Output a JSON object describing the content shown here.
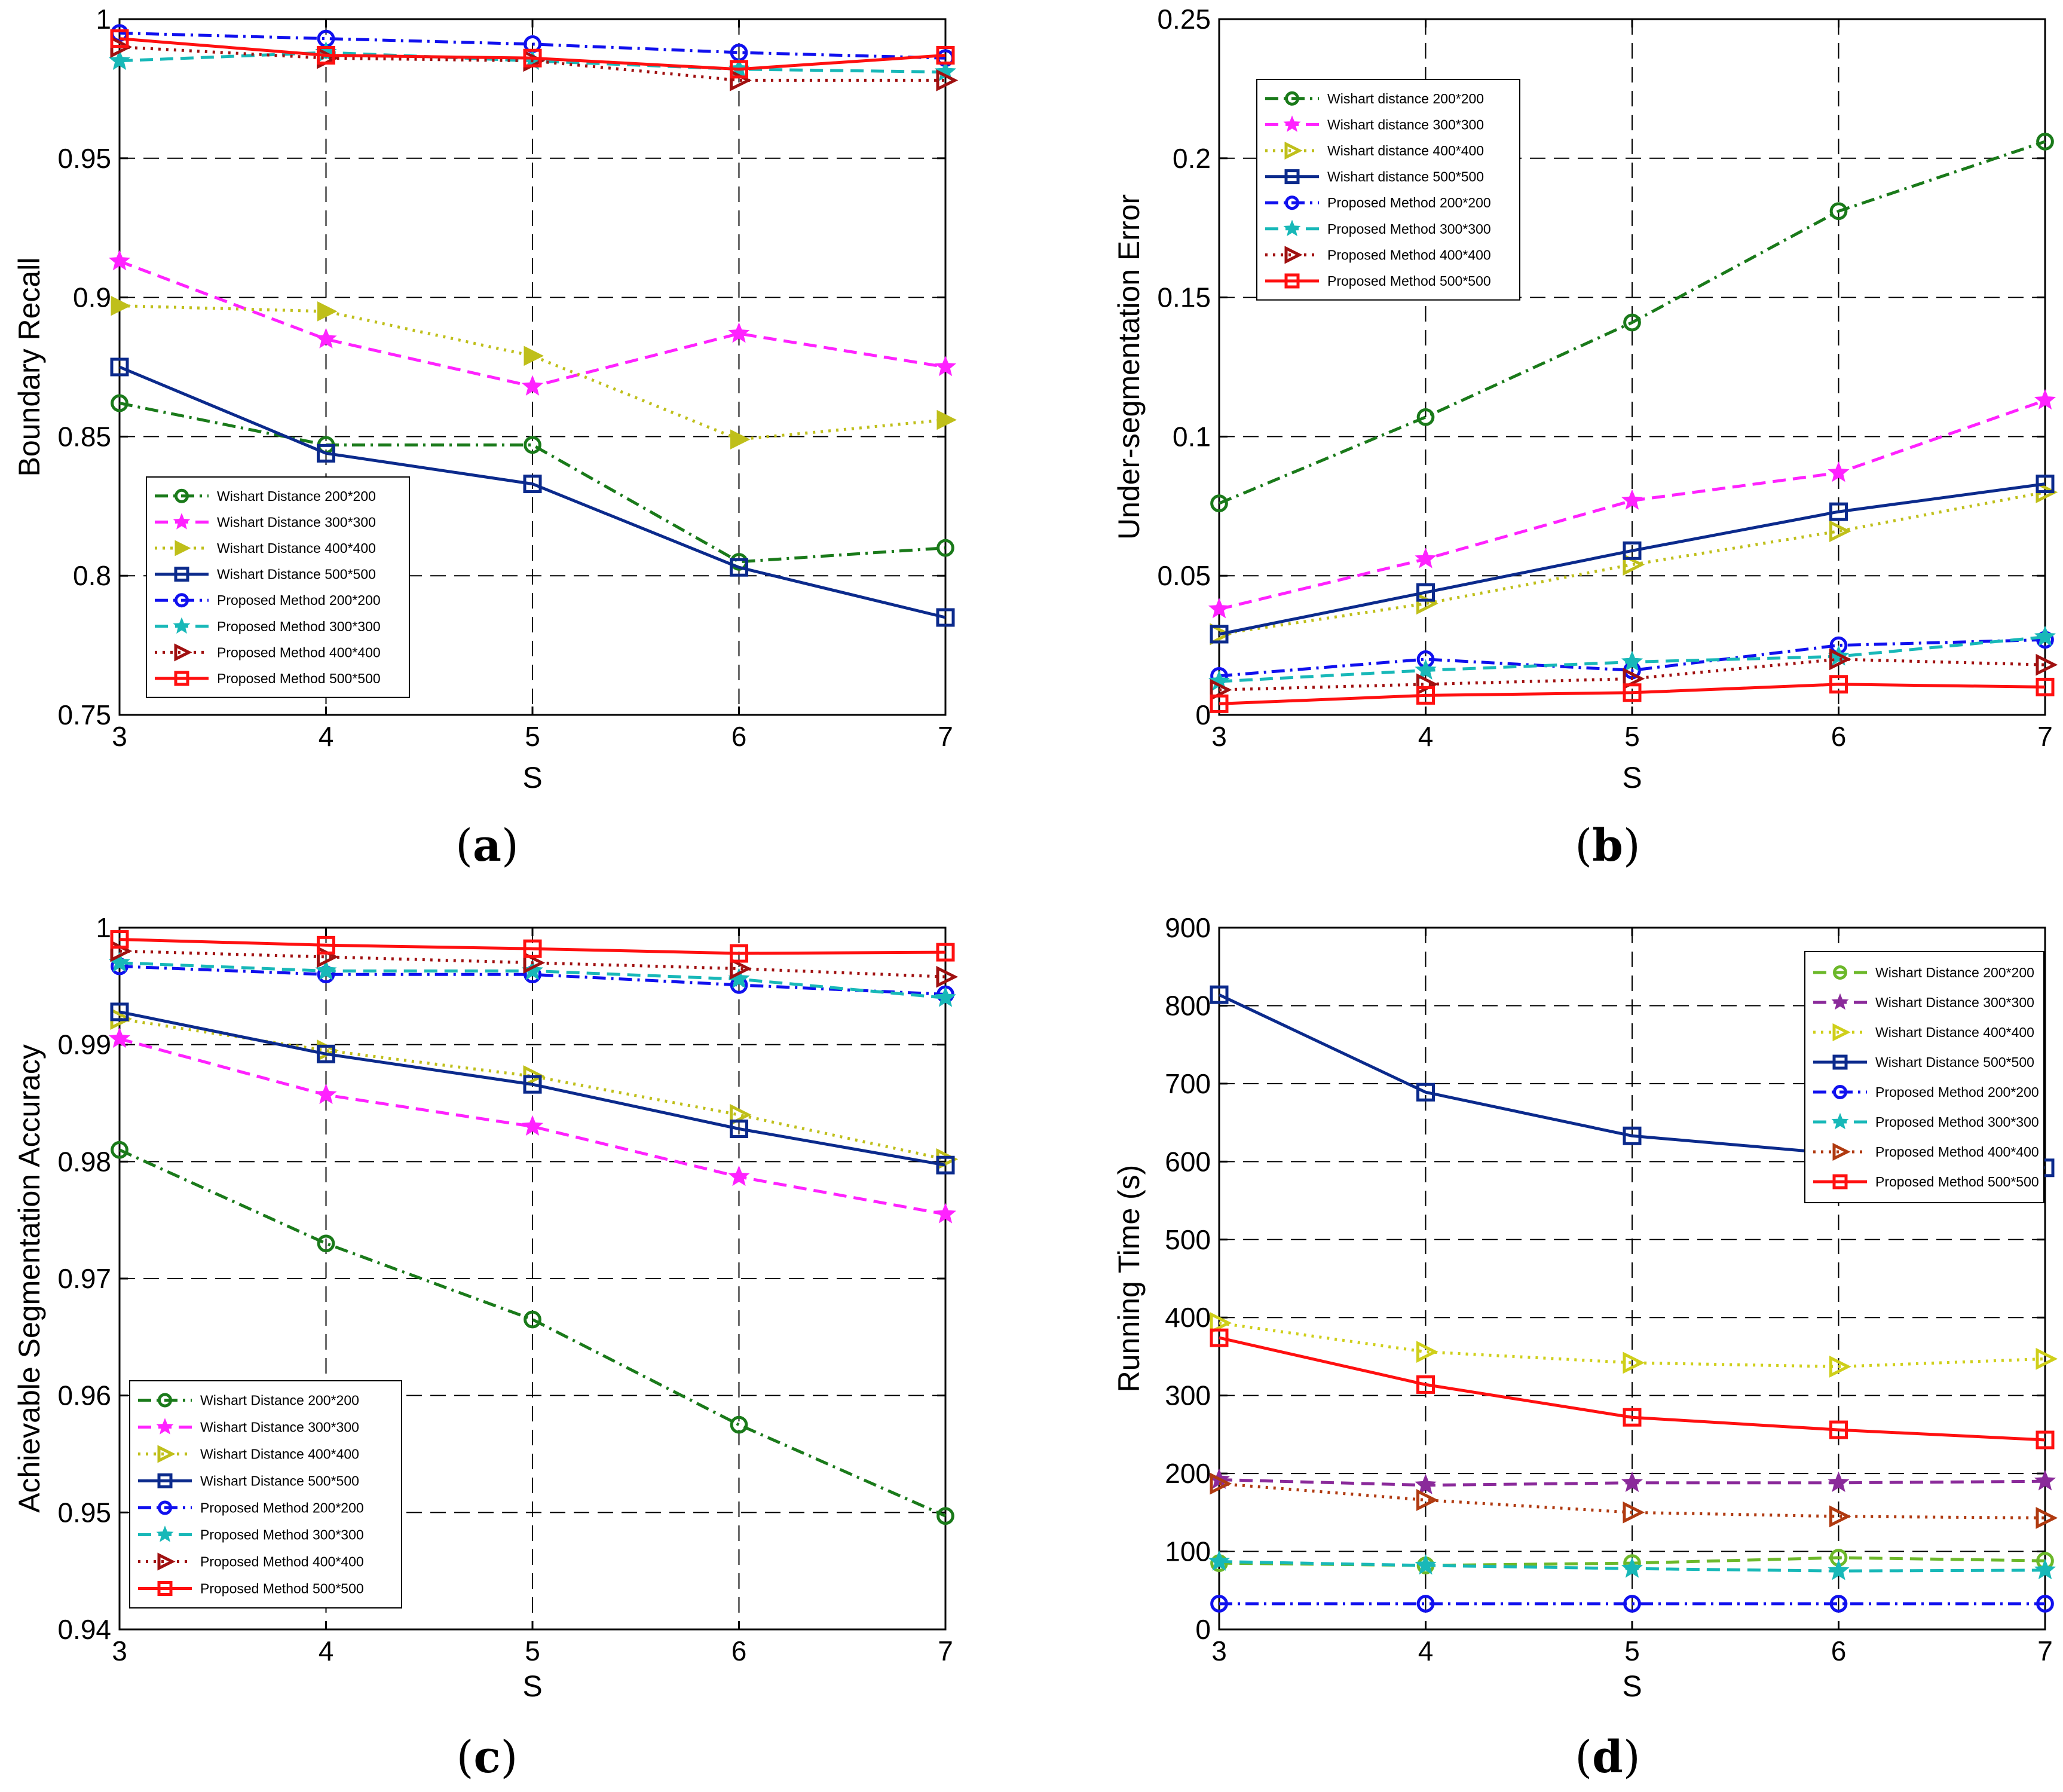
{
  "chart_data": [
    {
      "type": "line",
      "caption": "(a)",
      "xlabel": "S",
      "ylabel": "Boundary Recall",
      "x": [
        3,
        4,
        5,
        6,
        7
      ],
      "xticks": [
        "3",
        "4",
        "5",
        "6",
        "7"
      ],
      "yticks": [
        "0.75",
        "0.8",
        "0.85",
        "0.9",
        "0.95",
        "1"
      ],
      "xlim": [
        3,
        7
      ],
      "ylim": [
        0.75,
        1.0
      ],
      "grid": true,
      "legend_position": "bottom-left",
      "series": [
        {
          "name": "Wishart Distance 200*200",
          "color": "#1a7a1a",
          "dash": "dashdot",
          "marker": "circle",
          "values": [
            0.862,
            0.847,
            0.847,
            0.805,
            0.81
          ]
        },
        {
          "name": "Wishart Distance 300*300",
          "color": "#ff22ff",
          "dash": "dashed",
          "marker": "star",
          "values": [
            0.913,
            0.885,
            0.868,
            0.887,
            0.875
          ]
        },
        {
          "name": "Wishart Distance 400*400",
          "color": "#bfbf1a",
          "dash": "dotted",
          "marker": "triangle-filled",
          "values": [
            0.897,
            0.895,
            0.879,
            0.849,
            0.856
          ]
        },
        {
          "name": "Wishart Distance 500*500",
          "color": "#0b2a8c",
          "dash": "solid",
          "marker": "square",
          "values": [
            0.875,
            0.844,
            0.833,
            0.803,
            0.785
          ]
        },
        {
          "name": "Proposed Method 200*200",
          "color": "#1010ee",
          "dash": "dashdot",
          "marker": "circle",
          "values": [
            0.995,
            0.993,
            0.991,
            0.988,
            0.986
          ]
        },
        {
          "name": "Proposed Method 300*300",
          "color": "#18b8b8",
          "dash": "dashed",
          "marker": "star",
          "values": [
            0.985,
            0.988,
            0.985,
            0.982,
            0.981
          ]
        },
        {
          "name": "Proposed Method 400*400",
          "color": "#a01010",
          "dash": "dotted",
          "marker": "triangle-right",
          "values": [
            0.99,
            0.986,
            0.985,
            0.978,
            0.978
          ]
        },
        {
          "name": "Proposed Method 500*500",
          "color": "#ff1010",
          "dash": "solid",
          "marker": "square",
          "values": [
            0.993,
            0.987,
            0.986,
            0.982,
            0.987
          ]
        }
      ]
    },
    {
      "type": "line",
      "caption": "(b)",
      "xlabel": "S",
      "ylabel": "Under-segmentation Error",
      "x": [
        3,
        4,
        5,
        6,
        7
      ],
      "xticks": [
        "3",
        "4",
        "5",
        "6",
        "7"
      ],
      "yticks": [
        "0",
        "0.05",
        "0.1",
        "0.15",
        "0.2",
        "0.25"
      ],
      "xlim": [
        3,
        7
      ],
      "ylim": [
        0,
        0.25
      ],
      "grid": true,
      "legend_position": "top-left",
      "series": [
        {
          "name": "Wishart distance 200*200",
          "color": "#1a7a1a",
          "dash": "dashdot",
          "marker": "circle",
          "values": [
            0.076,
            0.107,
            0.141,
            0.181,
            0.206
          ]
        },
        {
          "name": "Wishart distance 300*300",
          "color": "#ff22ff",
          "dash": "dashed",
          "marker": "star",
          "values": [
            0.038,
            0.056,
            0.077,
            0.087,
            0.113
          ]
        },
        {
          "name": "Wishart distance 400*400",
          "color": "#bfbf1a",
          "dash": "dotted",
          "marker": "triangle-right",
          "values": [
            0.029,
            0.04,
            0.054,
            0.066,
            0.08
          ]
        },
        {
          "name": "Wishart distance 500*500",
          "color": "#0b2a8c",
          "dash": "solid",
          "marker": "square",
          "values": [
            0.029,
            0.044,
            0.059,
            0.073,
            0.083
          ]
        },
        {
          "name": "Proposed Method 200*200",
          "color": "#1010ee",
          "dash": "dashdot",
          "marker": "circle",
          "values": [
            0.014,
            0.02,
            0.016,
            0.025,
            0.027
          ]
        },
        {
          "name": "Proposed Method 300*300",
          "color": "#18b8b8",
          "dash": "dashed",
          "marker": "star",
          "values": [
            0.012,
            0.016,
            0.019,
            0.021,
            0.028
          ]
        },
        {
          "name": "Proposed Method 400*400",
          "color": "#a01010",
          "dash": "dotted",
          "marker": "triangle-right",
          "values": [
            0.009,
            0.011,
            0.013,
            0.02,
            0.018
          ]
        },
        {
          "name": "Proposed Method 500*500",
          "color": "#ff1010",
          "dash": "solid",
          "marker": "square",
          "values": [
            0.004,
            0.007,
            0.008,
            0.011,
            0.01
          ]
        }
      ]
    },
    {
      "type": "line",
      "caption": "(c)",
      "xlabel": "S",
      "ylabel": "Achievable Segmentation Accuracy",
      "x": [
        3,
        4,
        5,
        6,
        7
      ],
      "xticks": [
        "3",
        "4",
        "5",
        "6",
        "7"
      ],
      "yticks": [
        "0.94",
        "0.95",
        "0.96",
        "0.97",
        "0.98",
        "0.99",
        "1"
      ],
      "xlim": [
        3,
        7
      ],
      "ylim": [
        0.94,
        1.0
      ],
      "grid": true,
      "legend_position": "bottom-left",
      "series": [
        {
          "name": "Wishart Distance 200*200",
          "color": "#1a7a1a",
          "dash": "dashdot",
          "marker": "circle",
          "values": [
            0.981,
            0.973,
            0.9665,
            0.9575,
            0.9497
          ]
        },
        {
          "name": "Wishart Distance 300*300",
          "color": "#ff22ff",
          "dash": "dashed",
          "marker": "star",
          "values": [
            0.9905,
            0.9857,
            0.983,
            0.9787,
            0.9755
          ]
        },
        {
          "name": "Wishart Distance 400*400",
          "color": "#bfbf1a",
          "dash": "dotted",
          "marker": "triangle-right",
          "values": [
            0.9922,
            0.9895,
            0.9873,
            0.984,
            0.9802
          ]
        },
        {
          "name": "Wishart Distance 500*500",
          "color": "#0b2a8c",
          "dash": "solid",
          "marker": "square",
          "values": [
            0.9928,
            0.9892,
            0.9866,
            0.9828,
            0.9797
          ]
        },
        {
          "name": "Proposed Method 200*200",
          "color": "#1010ee",
          "dash": "dashdot",
          "marker": "circle",
          "values": [
            0.9967,
            0.996,
            0.996,
            0.9951,
            0.9943
          ]
        },
        {
          "name": "Proposed Method 300*300",
          "color": "#18b8b8",
          "dash": "dashed",
          "marker": "star",
          "values": [
            0.997,
            0.9963,
            0.9963,
            0.9956,
            0.994
          ]
        },
        {
          "name": "Proposed Method 400*400",
          "color": "#a01010",
          "dash": "dotted",
          "marker": "triangle-right",
          "values": [
            0.998,
            0.9975,
            0.997,
            0.9965,
            0.9958
          ]
        },
        {
          "name": "Proposed Method 500*500",
          "color": "#ff1010",
          "dash": "solid",
          "marker": "square",
          "values": [
            0.999,
            0.9985,
            0.9982,
            0.9978,
            0.9979
          ]
        }
      ]
    },
    {
      "type": "line",
      "caption": "(d)",
      "xlabel": "S",
      "ylabel": "Running Time (s)",
      "x": [
        3,
        4,
        5,
        6,
        7
      ],
      "xticks": [
        "3",
        "4",
        "5",
        "6",
        "7"
      ],
      "yticks": [
        "0",
        "100",
        "200",
        "300",
        "400",
        "500",
        "600",
        "700",
        "800",
        "900"
      ],
      "xlim": [
        3,
        7
      ],
      "ylim": [
        0,
        900
      ],
      "grid": true,
      "legend_position": "top-right",
      "series": [
        {
          "name": "Wishart Distance 200*200",
          "color": "#6cb82a",
          "dash": "dashed",
          "marker": "circle",
          "values": [
            85,
            82,
            85,
            92,
            88
          ]
        },
        {
          "name": "Wishart Distance 300*300",
          "color": "#8a2a9a",
          "dash": "dashed",
          "marker": "star",
          "values": [
            192,
            185,
            188,
            188,
            190
          ]
        },
        {
          "name": "Wishart Distance 400*400",
          "color": "#cfcf1a",
          "dash": "dotted",
          "marker": "triangle-right",
          "values": [
            393,
            356,
            342,
            337,
            347
          ]
        },
        {
          "name": "Wishart Distance 500*500",
          "color": "#0b2a8c",
          "dash": "solid",
          "marker": "square",
          "values": [
            814,
            689,
            633,
            610,
            592
          ]
        },
        {
          "name": "Proposed Method 200*200",
          "color": "#1010ee",
          "dash": "dashdot",
          "marker": "circle",
          "values": [
            33,
            33,
            33,
            33,
            33
          ]
        },
        {
          "name": "Proposed Method 300*300",
          "color": "#18b8b8",
          "dash": "dashed",
          "marker": "star",
          "values": [
            87,
            82,
            78,
            75,
            76
          ]
        },
        {
          "name": "Proposed Method 400*400",
          "color": "#b03a10",
          "dash": "dotted",
          "marker": "triangle-right",
          "values": [
            187,
            166,
            150,
            145,
            143
          ]
        },
        {
          "name": "Proposed Method 500*500",
          "color": "#ff1010",
          "dash": "solid",
          "marker": "square",
          "values": [
            374,
            314,
            272,
            256,
            243
          ]
        }
      ]
    }
  ]
}
